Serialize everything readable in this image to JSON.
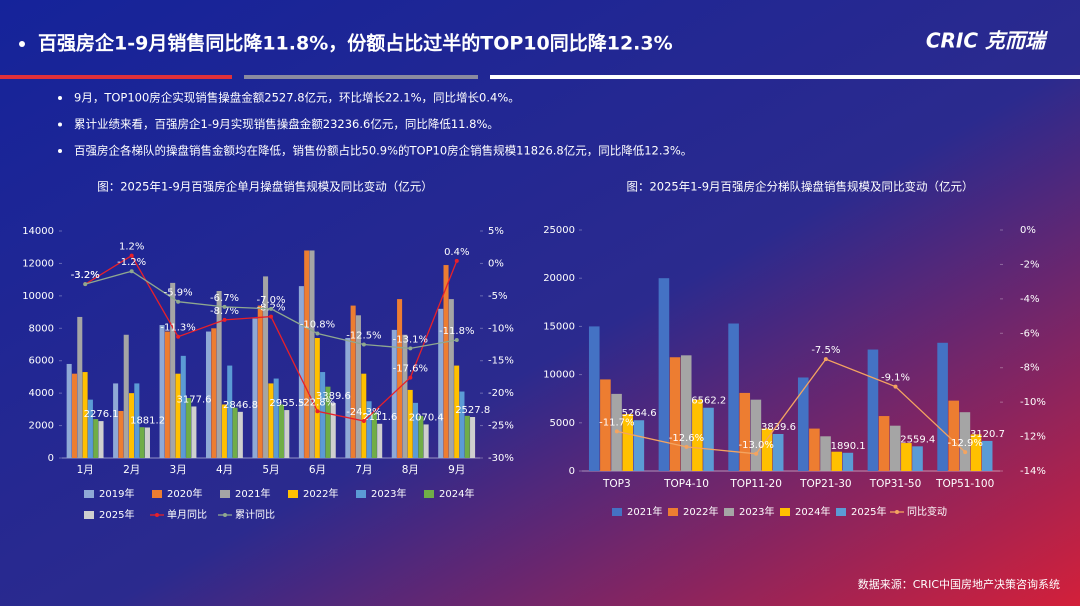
{
  "header": {
    "title": "百强房企1-9月销售同比降11.8%，份额占比过半的TOP10同比降12.3%",
    "logo": "CRIC 克而瑞"
  },
  "bullets": [
    "9月，TOP100房企实现销售操盘金额2527.8亿元，环比增长22.1%，同比增长0.4%。",
    "累计业绩来看，百强房企1-9月实现销售操盘金额23236.6亿元，同比降低11.8%。",
    "百强房企各梯队的操盘销售金额均在降低，销售份额占比50.9%的TOP10房企销售规模11826.8亿元，同比降低12.3%。"
  ],
  "source": "数据来源：CRIC中国房地产决策咨询系统",
  "chart_data": [
    {
      "type": "bar",
      "title": "图：2025年1-9月百强房企单月操盘销售规模及同比变动（亿元）",
      "categories": [
        "1月",
        "2月",
        "3月",
        "4月",
        "5月",
        "6月",
        "7月",
        "8月",
        "9月"
      ],
      "series": [
        {
          "name": "2019年",
          "color": "#8fa9d6",
          "values": [
            5800,
            4600,
            8200,
            7800,
            8600,
            10600,
            7400,
            7900,
            9200
          ]
        },
        {
          "name": "2020年",
          "color": "#ed7d31",
          "values": [
            5200,
            2900,
            7800,
            8000,
            9400,
            12800,
            9400,
            9800,
            11900
          ]
        },
        {
          "name": "2021年",
          "color": "#a5a5a5",
          "values": [
            8700,
            7600,
            10800,
            10300,
            11200,
            12800,
            8800,
            7600,
            9800
          ]
        },
        {
          "name": "2022年",
          "color": "#ffc000",
          "values": [
            5300,
            4000,
            5200,
            3300,
            4600,
            7400,
            5200,
            4200,
            5700
          ]
        },
        {
          "name": "2023年",
          "color": "#5b9bd5",
          "values": [
            3600,
            4600,
            6300,
            5700,
            4900,
            5300,
            3500,
            3400,
            4100
          ]
        },
        {
          "name": "2024年",
          "color": "#70ad47",
          "values": [
            2400,
            1900,
            3700,
            3100,
            3300,
            4400,
            2800,
            2600,
            2600
          ]
        },
        {
          "name": "2025年",
          "color": "#cfcfcf",
          "labels": true,
          "values": [
            2276.1,
            1881.2,
            3177.6,
            2846.8,
            2955.5,
            3389.6,
            2111.6,
            2070.4,
            2527.8
          ]
        },
        {
          "name": "单月同比",
          "color": "#e8202a",
          "type": "line",
          "axis": "y2",
          "values": [
            -3.2,
            1.2,
            -11.3,
            -8.7,
            -8.2,
            -22.8,
            -24.3,
            -17.6,
            0.4
          ],
          "value_labels": [
            "-3.2%",
            "1.2%",
            "-11.3%",
            "-8.7%",
            "-8.2%",
            "-22.8%",
            "-24.3%",
            "-17.6%",
            "0.4%"
          ]
        },
        {
          "name": "累计同比",
          "color": "#8fa88f",
          "type": "line",
          "axis": "y2",
          "values": [
            -3.2,
            -1.2,
            -5.9,
            -6.7,
            -7.0,
            -10.8,
            -12.5,
            -13.1,
            -11.8
          ],
          "value_labels": [
            "-3.2%",
            "-1.2%",
            "-5.9%",
            "-6.7%",
            "-7.0%",
            "-10.8%",
            "-12.5%",
            "-13.1%",
            "-11.8%"
          ]
        }
      ],
      "ylim": [
        0,
        14000
      ],
      "yticks": [
        0,
        2000,
        4000,
        6000,
        8000,
        10000,
        12000,
        14000
      ],
      "y2lim": [
        -30,
        5
      ],
      "y2ticks": [
        {
          "value": -30,
          "label": "-30%"
        },
        {
          "value": -25,
          "label": "-25%"
        },
        {
          "value": -20,
          "label": "-20%"
        },
        {
          "value": -15,
          "label": "-15%"
        },
        {
          "value": -10,
          "label": "-10%"
        },
        {
          "value": -5,
          "label": "-5%"
        },
        {
          "value": 0,
          "label": "0%"
        },
        {
          "value": 5,
          "label": "5%"
        }
      ]
    },
    {
      "type": "bar",
      "title": "图：2025年1-9月百强房企分梯队操盘销售规模及同比变动（亿元）",
      "categories": [
        "TOP3",
        "TOP4-10",
        "TOP11-20",
        "TOP21-30",
        "TOP31-50",
        "TOP51-100"
      ],
      "series": [
        {
          "name": "2021年",
          "color": "#4472c4",
          "values": [
            15000,
            20000,
            15300,
            9700,
            12600,
            13300
          ]
        },
        {
          "name": "2022年",
          "color": "#ed7d31",
          "values": [
            9500,
            11800,
            8100,
            4400,
            5700,
            7300
          ]
        },
        {
          "name": "2023年",
          "color": "#a5a5a5",
          "values": [
            8000,
            12000,
            7400,
            3600,
            4700,
            6100
          ]
        },
        {
          "name": "2024年",
          "color": "#ffc000",
          "values": [
            5900,
            7400,
            4400,
            2000,
            2900,
            3800
          ]
        },
        {
          "name": "2025年",
          "color": "#5b9bd5",
          "labels": true,
          "values": [
            5264.6,
            6562.2,
            3839.6,
            1890.1,
            2559.4,
            3120.7
          ]
        },
        {
          "name": "同比变动",
          "color": "#f4a460",
          "type": "line",
          "axis": "y2",
          "values": [
            -11.7,
            -12.6,
            -13.0,
            -7.5,
            -9.1,
            -12.9
          ],
          "value_labels": [
            "-11.7%",
            "-12.6%",
            "-13.0%",
            "-7.5%",
            "-9.1%",
            "-12.9%"
          ]
        }
      ],
      "ylim": [
        0,
        25000
      ],
      "yticks": [
        0,
        5000,
        10000,
        15000,
        20000,
        25000
      ],
      "y2lim": [
        -14,
        0
      ],
      "y2ticks": [
        {
          "value": -14,
          "label": "-14%"
        },
        {
          "value": -12,
          "label": "-12%"
        },
        {
          "value": -10,
          "label": "-10%"
        },
        {
          "value": -8,
          "label": "-8%"
        },
        {
          "value": -6,
          "label": "-6%"
        },
        {
          "value": -4,
          "label": "-4%"
        },
        {
          "value": -2,
          "label": "-2%"
        },
        {
          "value": 0,
          "label": "0%"
        }
      ]
    }
  ]
}
